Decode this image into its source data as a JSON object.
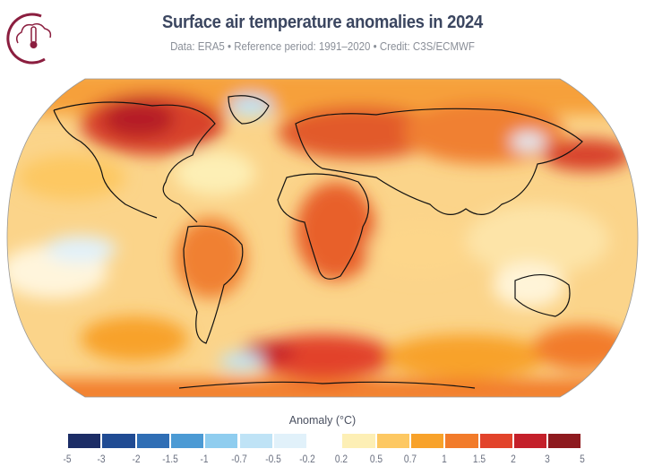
{
  "header": {
    "title": "Surface air temperature anomalies in 2024",
    "subtitle": "Data: ERA5 • Reference period: 1991–2020 • Credit: C3S/ECMWF",
    "logo_icon": "cloud-thermometer-icon"
  },
  "legend": {
    "title": "Anomaly (°C)",
    "ticks": [
      "-5",
      "-3",
      "-2",
      "-1.5",
      "-1",
      "-0.7",
      "-0.5",
      "-0.2",
      "0.2",
      "0.5",
      "0.7",
      "1",
      "1.5",
      "2",
      "3",
      "5"
    ],
    "colors": [
      "#1c2d66",
      "#204b93",
      "#2f6eb5",
      "#4b9ad4",
      "#8fcdef",
      "#bfe3f6",
      "#e1f1fa",
      "#ffffff",
      "#fdefb5",
      "#fdc862",
      "#f8a22a",
      "#f27b2a",
      "#e2432b",
      "#c4202a",
      "#8e1a1f"
    ]
  }
}
